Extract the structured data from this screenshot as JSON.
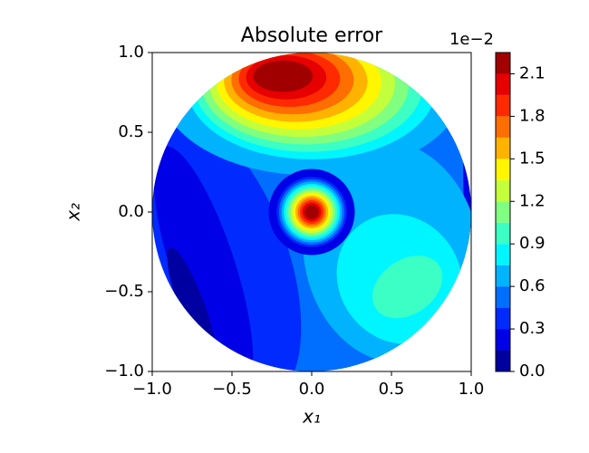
{
  "chart_data": {
    "type": "contourf",
    "title": "Absolute error",
    "xlabel": "x₁",
    "ylabel": "x₂",
    "xlim": [
      -1,
      1
    ],
    "ylim": [
      -1,
      1
    ],
    "xticks": [
      {
        "value": -1,
        "label": "−1.0"
      },
      {
        "value": -0.5,
        "label": "−0.5"
      },
      {
        "value": 0,
        "label": "0.0"
      },
      {
        "value": 0.5,
        "label": "0.5"
      },
      {
        "value": 1,
        "label": "1.0"
      }
    ],
    "yticks": [
      {
        "value": -1,
        "label": "−1.0"
      },
      {
        "value": -0.5,
        "label": "−0.5"
      },
      {
        "value": 0,
        "label": "0.0"
      },
      {
        "value": 0.5,
        "label": "0.5"
      },
      {
        "value": 1,
        "label": "1.0"
      }
    ],
    "colorbar": {
      "offset_label": "1e−2",
      "levels": [
        0,
        0.15,
        0.3,
        0.45,
        0.6,
        0.75,
        0.9,
        1.05,
        1.2,
        1.35,
        1.5,
        1.65,
        1.8,
        1.95,
        2.1,
        2.25
      ],
      "colors": [
        "#0000a1",
        "#0000e6",
        "#002aff",
        "#006eff",
        "#00b3ff",
        "#00f6ff",
        "#3bffc4",
        "#80ff80",
        "#c4ff3b",
        "#fff600",
        "#ffb300",
        "#ff6e00",
        "#ff2a00",
        "#e60000",
        "#a10000"
      ],
      "ticks": [
        {
          "value": 0,
          "label": "0.0"
        },
        {
          "value": 0.3,
          "label": "0.3"
        },
        {
          "value": 0.6,
          "label": "0.6"
        },
        {
          "value": 0.9,
          "label": "0.9"
        },
        {
          "value": 1.2,
          "label": "1.2"
        },
        {
          "value": 1.5,
          "label": "1.5"
        },
        {
          "value": 1.8,
          "label": "1.8"
        },
        {
          "value": 2.1,
          "label": "2.1"
        }
      ]
    }
  }
}
